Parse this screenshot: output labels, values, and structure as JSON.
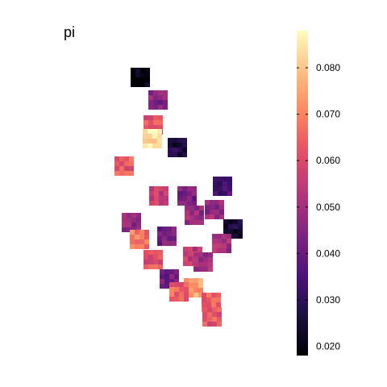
{
  "chart_data": {
    "type": "heatmap",
    "title": "pi",
    "colormap": "magma",
    "color_range": [
      0.018,
      0.088
    ],
    "legend": {
      "position": "right",
      "ticks": [
        "0.080",
        "0.070",
        "0.060",
        "0.050",
        "0.040",
        "0.030",
        "0.020"
      ],
      "tick_values": [
        0.08,
        0.07,
        0.06,
        0.05,
        0.04,
        0.03,
        0.02
      ]
    },
    "grid": false,
    "cells": [
      {
        "x": 174,
        "y": 96,
        "value": 0.02
      },
      {
        "x": 196,
        "y": 124,
        "value": 0.045
      },
      {
        "x": 190,
        "y": 155,
        "value": 0.062
      },
      {
        "x": 189,
        "y": 172,
        "value": 0.085
      },
      {
        "x": 220,
        "y": 183,
        "value": 0.027
      },
      {
        "x": 154,
        "y": 206,
        "value": 0.063
      },
      {
        "x": 276,
        "y": 231,
        "value": 0.035
      },
      {
        "x": 197,
        "y": 243,
        "value": 0.055
      },
      {
        "x": 232,
        "y": 243,
        "value": 0.043
      },
      {
        "x": 266,
        "y": 260,
        "value": 0.048
      },
      {
        "x": 241,
        "y": 267,
        "value": 0.048
      },
      {
        "x": 163,
        "y": 276,
        "value": 0.047
      },
      {
        "x": 289,
        "y": 284,
        "value": 0.025
      },
      {
        "x": 173,
        "y": 297,
        "value": 0.068
      },
      {
        "x": 207,
        "y": 293,
        "value": 0.042
      },
      {
        "x": 275,
        "y": 302,
        "value": 0.05
      },
      {
        "x": 239,
        "y": 318,
        "value": 0.055
      },
      {
        "x": 190,
        "y": 322,
        "value": 0.062
      },
      {
        "x": 252,
        "y": 325,
        "value": 0.05
      },
      {
        "x": 210,
        "y": 346,
        "value": 0.042
      },
      {
        "x": 240,
        "y": 357,
        "value": 0.075
      },
      {
        "x": 222,
        "y": 362,
        "value": 0.065
      },
      {
        "x": 262,
        "y": 375,
        "value": 0.066
      },
      {
        "x": 263,
        "y": 393,
        "value": 0.062
      }
    ]
  }
}
